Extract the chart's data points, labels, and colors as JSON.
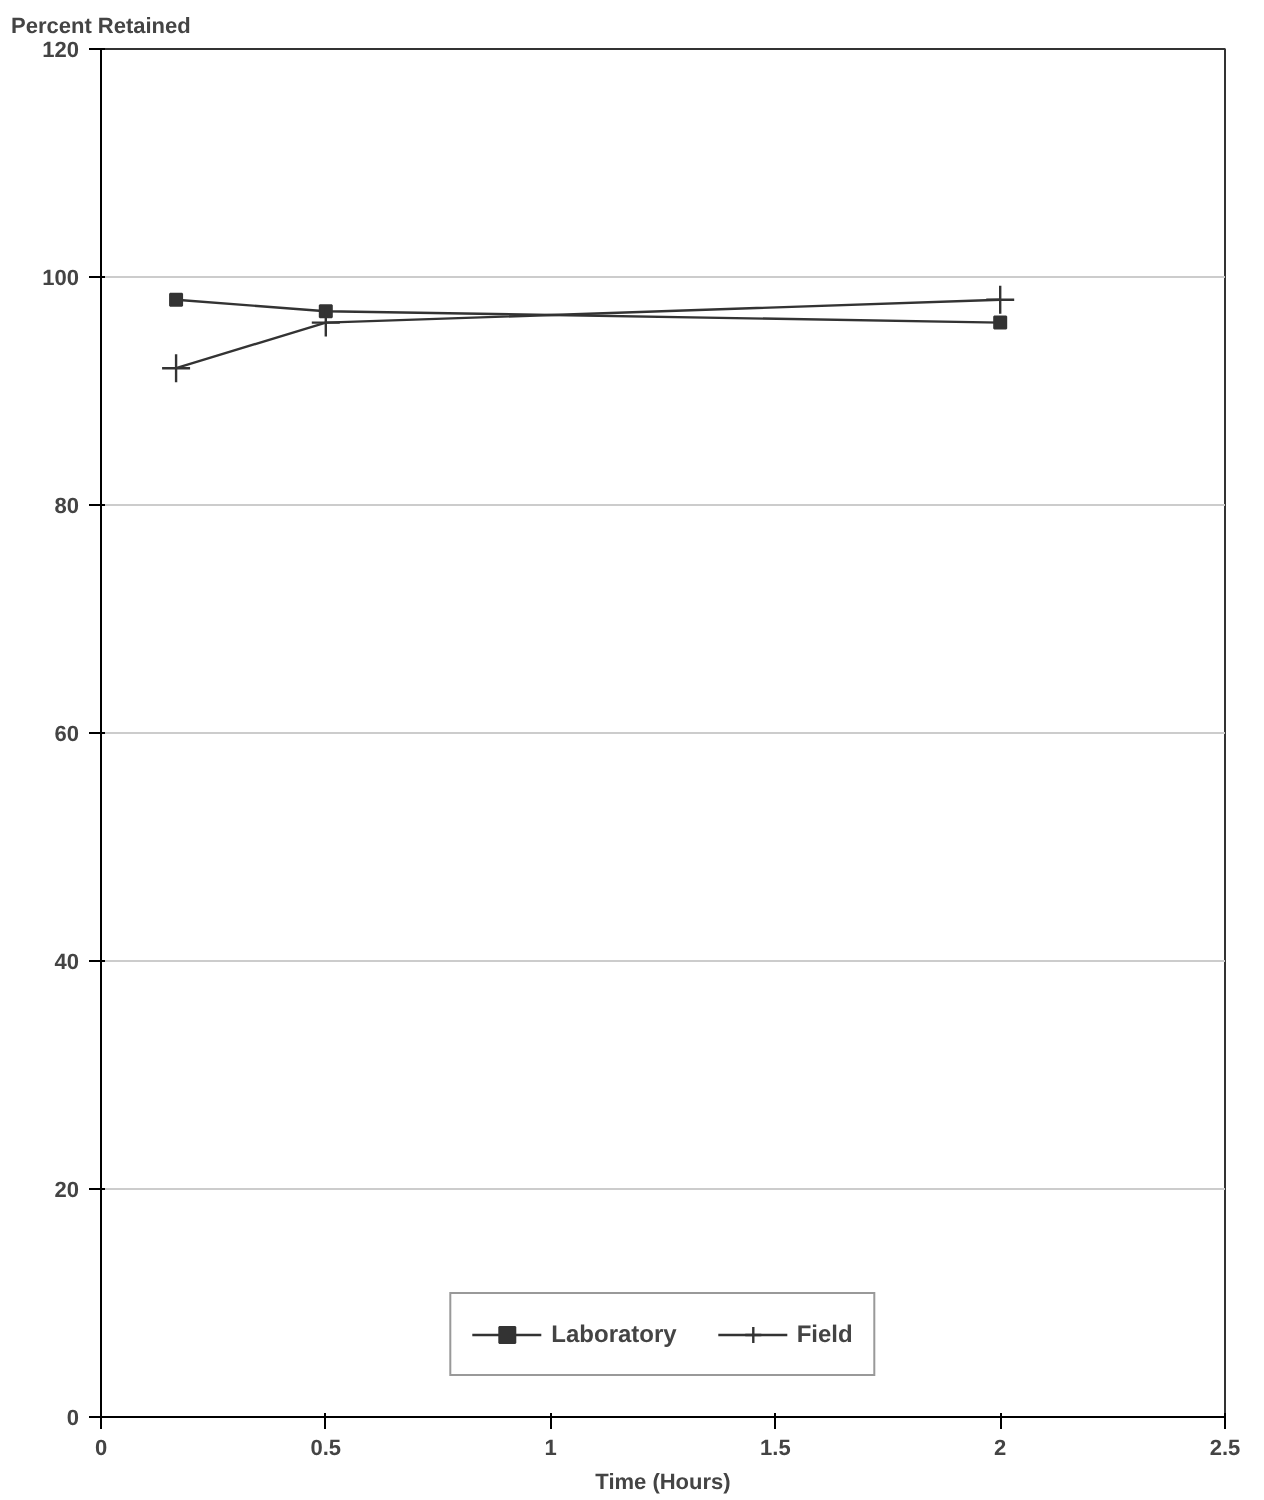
{
  "chart_data": {
    "type": "line",
    "ylabel": "Percent Retained",
    "xlabel": "Time (Hours)",
    "xlim": [
      0,
      2.5
    ],
    "xticks": [
      0,
      0.5,
      1,
      1.5,
      2,
      2.5
    ],
    "ylim": [
      0,
      120
    ],
    "yticks": [
      0,
      20,
      40,
      60,
      80,
      100,
      120
    ],
    "grid": "y",
    "legend": "bottom",
    "line_style": "solid",
    "series": [
      {
        "name": "Laboratory",
        "color": "#333333",
        "marker": "square",
        "x": [
          0.167,
          0.5,
          2
        ],
        "values": [
          98,
          97,
          96
        ]
      },
      {
        "name": "Field",
        "color": "#333333",
        "marker": "cross",
        "x": [
          0.167,
          0.5,
          2
        ],
        "values": [
          92,
          96,
          98
        ]
      }
    ]
  }
}
